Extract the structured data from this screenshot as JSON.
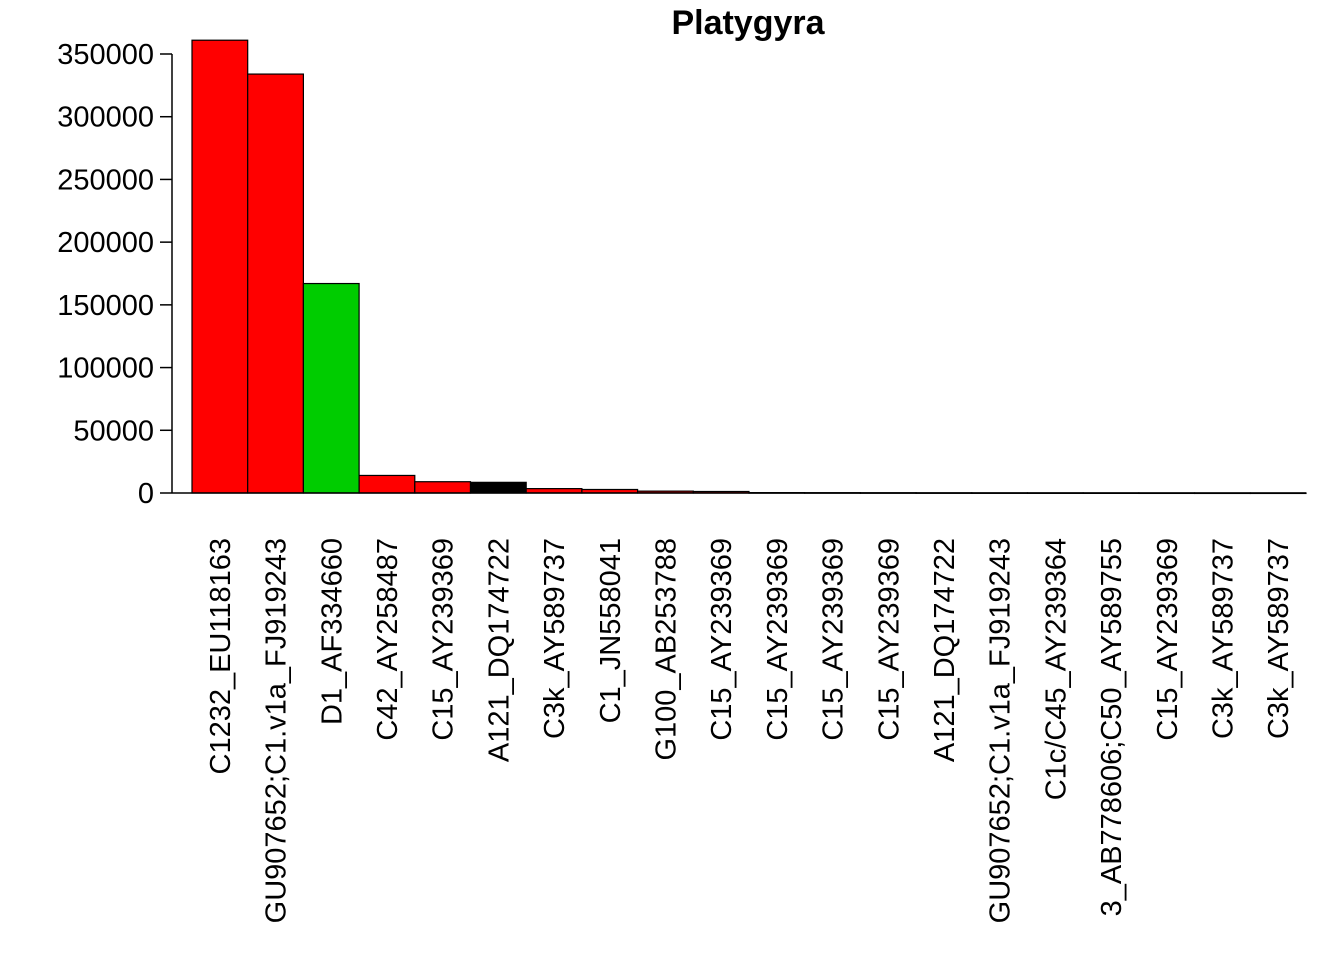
{
  "chart_data": {
    "type": "bar",
    "title": "Platygyra",
    "xlabel": "",
    "ylabel": "",
    "ylim": [
      0,
      362000
    ],
    "yticks": [
      0,
      50000,
      100000,
      150000,
      200000,
      250000,
      300000,
      350000
    ],
    "ytick_labels": [
      "0",
      "50000",
      "100000",
      "150000",
      "200000",
      "250000",
      "300000",
      "350000"
    ],
    "grid": false,
    "legend": "none",
    "categories": [
      "C1232_EU118163",
      "GU907652;C1.v1a_FJ919243",
      "D1_AF334660",
      "C42_AY258487",
      "C15_AY239369",
      "A121_DQ174722",
      "C3k_AY589737",
      "C1_JN558041",
      "G100_AB253788",
      "C15_AY239369",
      "C15_AY239369",
      "C15_AY239369",
      "C15_AY239369",
      "A121_DQ174722",
      "GU907652;C1.v1a_FJ919243",
      "C1c/C45_AY239364",
      "3_AB778606;C50_AY589755",
      "C15_AY239369",
      "C3k_AY589737",
      "C3k_AY589737"
    ],
    "values": [
      361000,
      334000,
      167000,
      14000,
      9000,
      8500,
      3500,
      2800,
      1500,
      1200,
      300,
      250,
      200,
      150,
      120,
      100,
      80,
      60,
      40,
      30
    ],
    "colors": [
      "#ff0000",
      "#ff0000",
      "#00cc00",
      "#ff0000",
      "#ff0000",
      "#000000",
      "#ff0000",
      "#ff0000",
      "#ff0000",
      "#ff0000",
      "#ff0000",
      "#ff0000",
      "#ff0000",
      "#000000",
      "#ff0000",
      "#ff0000",
      "#ff0000",
      "#ff0000",
      "#ff0000",
      "#ff0000"
    ]
  }
}
